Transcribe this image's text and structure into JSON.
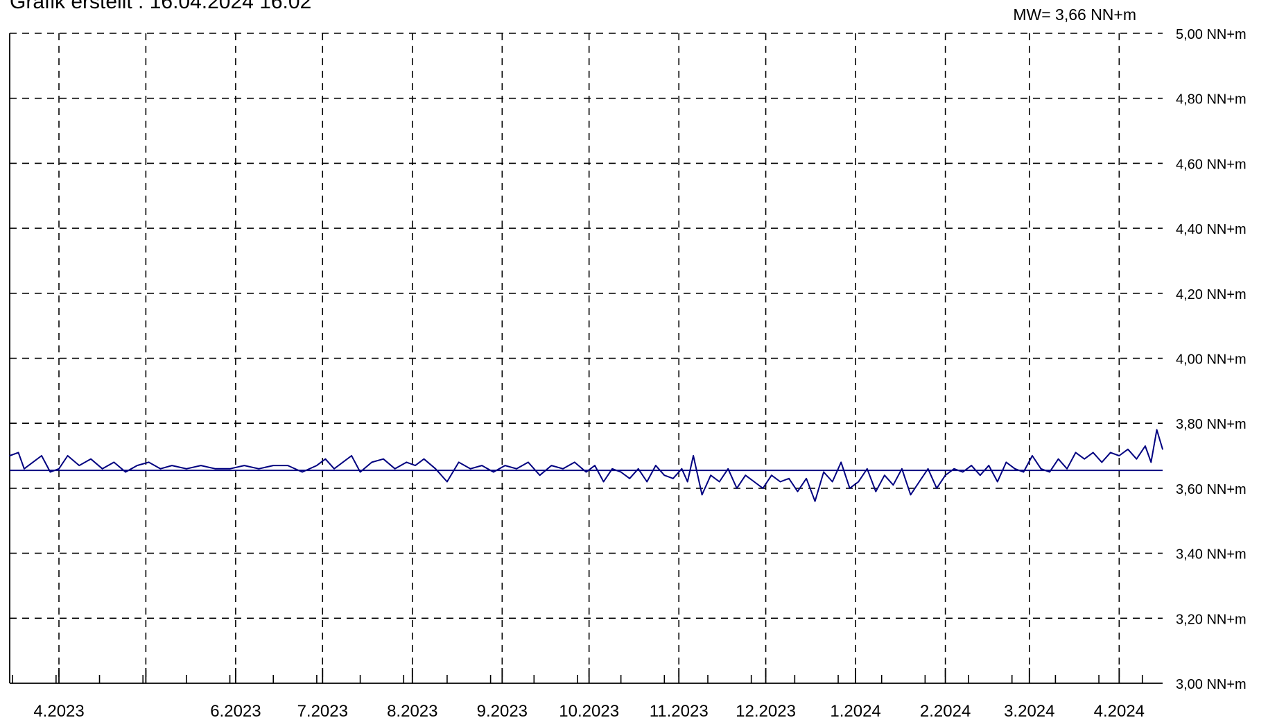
{
  "header_text": "Grafik erstellt : 16.04.2024 16:02",
  "mean_label": "MW= 3,66 NN+m",
  "chart_data": {
    "type": "line",
    "title": "",
    "xlabel": "",
    "ylabel": "",
    "ylim": [
      3.0,
      5.0
    ],
    "x_range": [
      "2023-03-15",
      "2024-04-16"
    ],
    "y_ticks": [
      3.0,
      3.2,
      3.4,
      3.6,
      3.8,
      4.0,
      4.2,
      4.4,
      4.6,
      4.8,
      5.0
    ],
    "y_tick_labels": [
      "3,00 NN+m",
      "3,20 NN+m",
      "3,40 NN+m",
      "3,60 NN+m",
      "3,80 NN+m",
      "4,00 NN+m",
      "4,20 NN+m",
      "4,40 NN+m",
      "4,60 NN+m",
      "4,80 NN+m",
      "5,00 NN+m"
    ],
    "x_ticks": [
      "2023-04-01",
      "2023-05-01",
      "2023-06-01",
      "2023-07-01",
      "2023-08-01",
      "2023-09-01",
      "2023-10-01",
      "2023-11-01",
      "2023-12-01",
      "2024-01-01",
      "2024-02-01",
      "2024-03-01",
      "2024-04-01"
    ],
    "x_tick_labels": [
      {
        "date": "2023-04-01",
        "label": "4.2023"
      },
      {
        "date": "2023-06-01",
        "label": "6.2023"
      },
      {
        "date": "2023-07-01",
        "label": "7.2023"
      },
      {
        "date": "2023-08-01",
        "label": "8.2023"
      },
      {
        "date": "2023-09-01",
        "label": "9.2023"
      },
      {
        "date": "2023-10-01",
        "label": "10.2023"
      },
      {
        "date": "2023-11-01",
        "label": "11.2023"
      },
      {
        "date": "2023-12-01",
        "label": "12.2023"
      },
      {
        "date": "2024-01-01",
        "label": "1.2024"
      },
      {
        "date": "2024-02-01",
        "label": "2.2024"
      },
      {
        "date": "2024-03-01",
        "label": "3.2024"
      },
      {
        "date": "2024-04-01",
        "label": "4.2024"
      }
    ],
    "grid": true,
    "grid_style": "dashed",
    "mean_line": 3.655,
    "series": [
      {
        "color": "#000080",
        "x": [
          "2023-03-15",
          "2023-03-18",
          "2023-03-20",
          "2023-03-23",
          "2023-03-26",
          "2023-03-29",
          "2023-04-01",
          "2023-04-04",
          "2023-04-08",
          "2023-04-12",
          "2023-04-16",
          "2023-04-20",
          "2023-04-24",
          "2023-04-28",
          "2023-05-02",
          "2023-05-06",
          "2023-05-10",
          "2023-05-15",
          "2023-05-20",
          "2023-05-25",
          "2023-05-30",
          "2023-06-04",
          "2023-06-09",
          "2023-06-14",
          "2023-06-19",
          "2023-06-24",
          "2023-06-29",
          "2023-07-02",
          "2023-07-05",
          "2023-07-08",
          "2023-07-11",
          "2023-07-14",
          "2023-07-18",
          "2023-07-22",
          "2023-07-26",
          "2023-07-30",
          "2023-08-02",
          "2023-08-05",
          "2023-08-09",
          "2023-08-13",
          "2023-08-17",
          "2023-08-21",
          "2023-08-25",
          "2023-08-29",
          "2023-09-02",
          "2023-09-06",
          "2023-09-10",
          "2023-09-14",
          "2023-09-18",
          "2023-09-22",
          "2023-09-26",
          "2023-09-30",
          "2023-10-03",
          "2023-10-06",
          "2023-10-09",
          "2023-10-12",
          "2023-10-15",
          "2023-10-18",
          "2023-10-21",
          "2023-10-24",
          "2023-10-27",
          "2023-10-30",
          "2023-11-02",
          "2023-11-04",
          "2023-11-06",
          "2023-11-09",
          "2023-11-12",
          "2023-11-15",
          "2023-11-18",
          "2023-11-21",
          "2023-11-24",
          "2023-11-27",
          "2023-11-30",
          "2023-12-03",
          "2023-12-06",
          "2023-12-09",
          "2023-12-12",
          "2023-12-15",
          "2023-12-18",
          "2023-12-21",
          "2023-12-24",
          "2023-12-27",
          "2023-12-30",
          "2024-01-02",
          "2024-01-05",
          "2024-01-08",
          "2024-01-11",
          "2024-01-14",
          "2024-01-17",
          "2024-01-20",
          "2024-01-23",
          "2024-01-26",
          "2024-01-29",
          "2024-02-01",
          "2024-02-04",
          "2024-02-07",
          "2024-02-10",
          "2024-02-13",
          "2024-02-16",
          "2024-02-19",
          "2024-02-22",
          "2024-02-25",
          "2024-02-28",
          "2024-03-02",
          "2024-03-05",
          "2024-03-08",
          "2024-03-11",
          "2024-03-14",
          "2024-03-17",
          "2024-03-20",
          "2024-03-23",
          "2024-03-26",
          "2024-03-29",
          "2024-04-01",
          "2024-04-04",
          "2024-04-07",
          "2024-04-10",
          "2024-04-12",
          "2024-04-14",
          "2024-04-16"
        ],
        "values": [
          3.7,
          3.71,
          3.66,
          3.68,
          3.7,
          3.65,
          3.66,
          3.7,
          3.67,
          3.69,
          3.66,
          3.68,
          3.65,
          3.67,
          3.68,
          3.66,
          3.67,
          3.66,
          3.67,
          3.66,
          3.66,
          3.67,
          3.66,
          3.67,
          3.67,
          3.65,
          3.67,
          3.69,
          3.66,
          3.68,
          3.7,
          3.65,
          3.68,
          3.69,
          3.66,
          3.68,
          3.67,
          3.69,
          3.66,
          3.62,
          3.68,
          3.66,
          3.67,
          3.65,
          3.67,
          3.66,
          3.68,
          3.64,
          3.67,
          3.66,
          3.68,
          3.65,
          3.67,
          3.62,
          3.66,
          3.65,
          3.63,
          3.66,
          3.62,
          3.67,
          3.64,
          3.63,
          3.66,
          3.62,
          3.7,
          3.58,
          3.64,
          3.62,
          3.66,
          3.6,
          3.64,
          3.62,
          3.6,
          3.64,
          3.62,
          3.63,
          3.59,
          3.63,
          3.56,
          3.65,
          3.62,
          3.68,
          3.6,
          3.62,
          3.66,
          3.59,
          3.64,
          3.61,
          3.66,
          3.58,
          3.62,
          3.66,
          3.6,
          3.64,
          3.66,
          3.65,
          3.67,
          3.64,
          3.67,
          3.62,
          3.68,
          3.66,
          3.65,
          3.7,
          3.66,
          3.65,
          3.69,
          3.66,
          3.71,
          3.69,
          3.71,
          3.68,
          3.71,
          3.7,
          3.72,
          3.69,
          3.73,
          3.68,
          3.78,
          3.72
        ]
      }
    ]
  }
}
